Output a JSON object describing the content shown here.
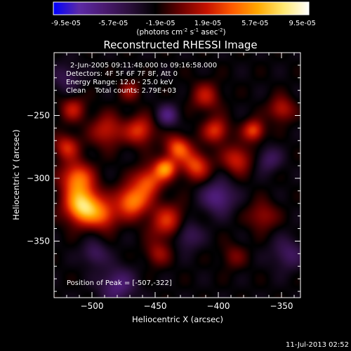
{
  "colorbar": {
    "tick_labels": [
      "-9.5e-05",
      "-5.7e-05",
      "-1.9e-05",
      "1.9e-05",
      "5.7e-05",
      "9.5e-05"
    ],
    "units_prefix": "(photons cm",
    "units_exp1": "-2",
    "units_mid": " s",
    "units_exp2": "-1",
    "units_mid2": " asec",
    "units_exp3": "-2",
    "units_suffix": ")",
    "stops": [
      "#0000ff",
      "#5c2aa6",
      "#4a1a70",
      "#2a0f3a",
      "#000000",
      "#6a0000",
      "#c61200",
      "#ff5a00",
      "#ffa800",
      "#ffe870",
      "#ffffff"
    ]
  },
  "chart_data": {
    "type": "heatmap",
    "title": "Reconstructed RHESSI Image",
    "xlabel": "Heliocentric X (arcsec)",
    "ylabel": "Heliocentric Y (arcsec)",
    "xlim": [
      -530,
      -335
    ],
    "ylim": [
      -395,
      -200
    ],
    "x_ticks": [
      -500,
      -450,
      -400,
      -350
    ],
    "y_ticks": [
      -250,
      -300,
      -350
    ],
    "x_tick_labels": [
      "−500",
      "−450",
      "−400",
      "−350"
    ],
    "y_tick_labels": [
      "−250",
      "−300",
      "−350"
    ],
    "annotations": [
      "2-Jun-2005 09:11:48.000 to 09:16:58.000",
      "Detectors: 4F 5F 6F 7F 8F, Att 0",
      "Energy Range: 12.0 - 25.0 keV",
      "Clean    Total counts: 2.79E+03"
    ],
    "peak_label": "Position of Peak = [-507,-322]",
    "peak": [
      -507,
      -322
    ],
    "blobs": [
      {
        "x": -507,
        "y": -322,
        "s": 10,
        "a": 1.0
      },
      {
        "x": -512,
        "y": -300,
        "s": 9,
        "a": 0.65
      },
      {
        "x": -490,
        "y": -330,
        "s": 8,
        "a": 0.45
      },
      {
        "x": -468,
        "y": -318,
        "s": 9,
        "a": 0.72
      },
      {
        "x": -455,
        "y": -302,
        "s": 8,
        "a": 0.55
      },
      {
        "x": -440,
        "y": -335,
        "s": 10,
        "a": 0.48
      },
      {
        "x": -488,
        "y": -262,
        "s": 9,
        "a": 0.42
      },
      {
        "x": -462,
        "y": -262,
        "s": 8,
        "a": 0.5
      },
      {
        "x": -432,
        "y": -276,
        "s": 7,
        "a": 0.6
      },
      {
        "x": -442,
        "y": -292,
        "s": 6,
        "a": 0.7
      },
      {
        "x": -418,
        "y": -290,
        "s": 8,
        "a": 0.55
      },
      {
        "x": -402,
        "y": -262,
        "s": 7,
        "a": 0.5
      },
      {
        "x": -385,
        "y": -285,
        "s": 8,
        "a": 0.45
      },
      {
        "x": -372,
        "y": -262,
        "s": 6,
        "a": 0.55
      },
      {
        "x": -410,
        "y": -235,
        "s": 8,
        "a": 0.38
      },
      {
        "x": -350,
        "y": -245,
        "s": 7,
        "a": 0.4
      },
      {
        "x": -520,
        "y": -275,
        "s": 7,
        "a": 0.45
      },
      {
        "x": -365,
        "y": -330,
        "s": 8,
        "a": 0.32
      },
      {
        "x": -388,
        "y": -362,
        "s": 7,
        "a": 0.22
      },
      {
        "x": -448,
        "y": -360,
        "s": 7,
        "a": 0.3
      },
      {
        "x": -515,
        "y": -245,
        "s": 7,
        "a": 0.38
      },
      {
        "x": -470,
        "y": -230,
        "s": 6,
        "a": 0.3
      },
      {
        "x": -440,
        "y": -250,
        "s": 6,
        "a": -0.4
      },
      {
        "x": -400,
        "y": -315,
        "s": 9,
        "a": -0.45
      },
      {
        "x": -425,
        "y": -345,
        "s": 8,
        "a": -0.35
      },
      {
        "x": -480,
        "y": -385,
        "s": 10,
        "a": -0.4
      },
      {
        "x": -345,
        "y": -360,
        "s": 9,
        "a": -0.3
      },
      {
        "x": -498,
        "y": -360,
        "s": 7,
        "a": -0.3
      },
      {
        "x": -360,
        "y": -285,
        "s": 7,
        "a": -0.3
      },
      {
        "x": -520,
        "y": -220,
        "s": 8,
        "a": -0.25
      }
    ]
  },
  "footer": {
    "timestamp": "11-Jul-2013 02:52"
  }
}
